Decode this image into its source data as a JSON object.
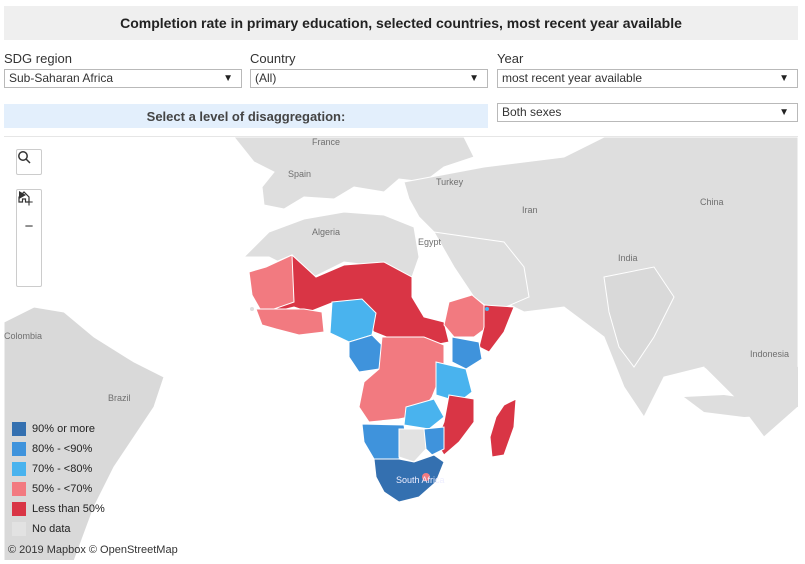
{
  "title": "Completion rate in primary education, selected countries, most recent year available",
  "filters": {
    "sdg_region": {
      "label": "SDG region",
      "value": "Sub-Saharan Africa"
    },
    "country": {
      "label": "Country",
      "value": "(All)"
    },
    "year": {
      "label": "Year",
      "value": "most recent year available"
    },
    "sex": {
      "value": "Both sexes"
    }
  },
  "disaggregation_label": "Select a level of disaggregation:",
  "map_labels": {
    "france": "France",
    "spain": "Spain",
    "turkey": "Turkey",
    "iran": "Iran",
    "china": "China",
    "algeria": "Algeria",
    "egypt": "Egypt",
    "india": "India",
    "colombia": "Colombia",
    "brazil": "Brazil",
    "indonesia": "Indonesia",
    "south_africa": "South Africa"
  },
  "legend": [
    {
      "label": "90% or more",
      "color": "#3470b0"
    },
    {
      "label": "80% - <90%",
      "color": "#3f93dc"
    },
    {
      "label": "70% - <80%",
      "color": "#49b3ee"
    },
    {
      "label": "50% - <70%",
      "color": "#f27a80"
    },
    {
      "label": "Less than 50%",
      "color": "#d93545"
    },
    {
      "label": "No data",
      "color": "#e2e2e2"
    }
  ],
  "attribution": "© 2019 Mapbox © OpenStreetMap",
  "icons": [
    "search-icon",
    "zoom-in-icon",
    "zoom-out-icon",
    "home-icon",
    "play-icon",
    "chevron-down-icon"
  ]
}
